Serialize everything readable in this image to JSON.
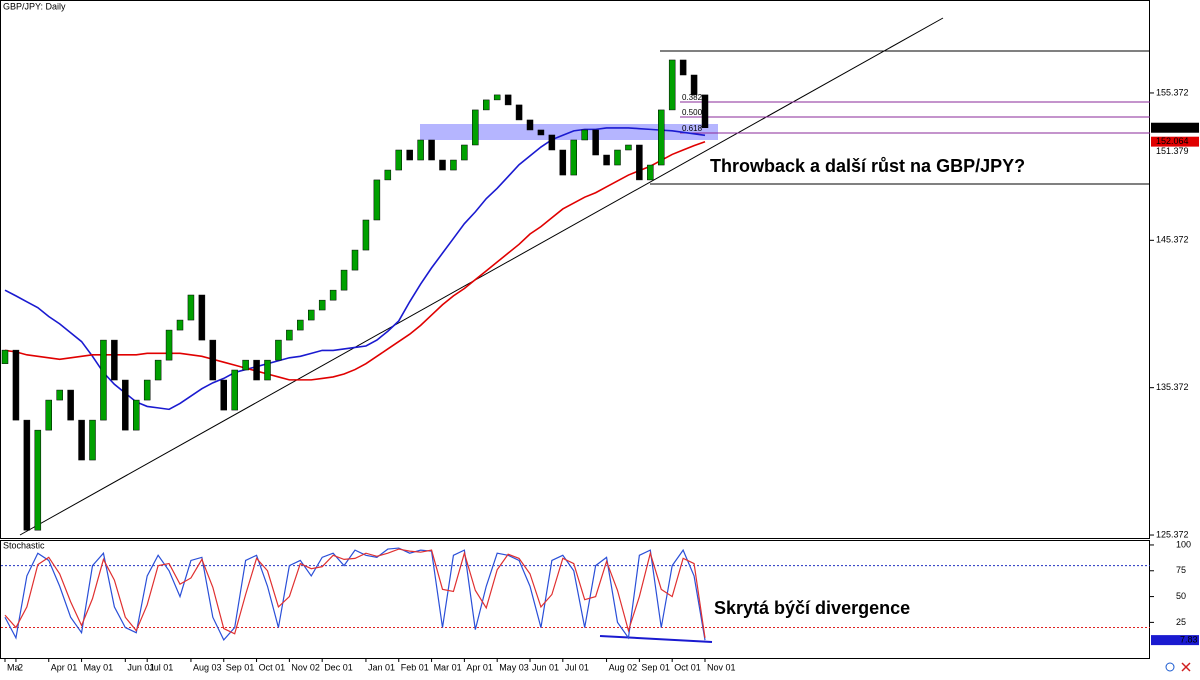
{
  "chart_data": [
    {
      "type": "candlestick",
      "title": "GBP/JPY: Daily",
      "categories": [
        "Ma",
        "2",
        null,
        null,
        "Apr 01",
        null,
        null,
        "May 01",
        null,
        null,
        null,
        "Jun 01",
        null,
        "Jul 01",
        null,
        null,
        null,
        "Aug 03",
        null,
        null,
        "Sep 01",
        null,
        null,
        "Oct 01",
        null,
        null,
        "Nov 02",
        null,
        null,
        "Dec 01",
        null,
        null,
        null,
        "Jan 01",
        null,
        null,
        "Feb 01",
        null,
        null,
        "Mar 01",
        null,
        null,
        "Apr 01",
        null,
        null,
        "May 03",
        null,
        null,
        "Jun 01",
        null,
        null,
        "Jul 01",
        null,
        null,
        null,
        "Aug 02",
        null,
        null,
        "Sep 01",
        null,
        null,
        "Oct 01",
        null,
        null,
        "Nov 01"
      ],
      "open": [
        137.0,
        137.92,
        133.17,
        125.7,
        132.49,
        134.53,
        135.21,
        133.17,
        130.46,
        133.17,
        138.6,
        135.89,
        132.49,
        134.53,
        135.89,
        137.24,
        139.28,
        139.96,
        141.66,
        138.6,
        135.89,
        133.85,
        136.57,
        137.24,
        135.89,
        137.24,
        138.6,
        139.28,
        139.96,
        140.64,
        141.31,
        141.99,
        143.35,
        144.71,
        146.75,
        149.47,
        150.14,
        151.5,
        150.82,
        152.18,
        150.82,
        150.14,
        150.82,
        151.84,
        154.22,
        154.9,
        155.24,
        154.56,
        153.54,
        152.86,
        152.52,
        151.5,
        149.8,
        152.18,
        152.86,
        151.16,
        150.48,
        151.5,
        151.84,
        149.47,
        150.48,
        154.22,
        157.61,
        156.59,
        155.24
      ],
      "close": [
        137.92,
        133.17,
        125.7,
        132.49,
        134.53,
        135.21,
        133.17,
        130.46,
        133.17,
        138.6,
        135.89,
        132.49,
        134.53,
        135.89,
        137.24,
        139.28,
        139.96,
        141.66,
        138.6,
        135.89,
        133.85,
        136.57,
        137.24,
        135.89,
        137.24,
        138.6,
        139.28,
        139.96,
        140.64,
        141.31,
        141.99,
        143.35,
        144.71,
        146.75,
        149.47,
        150.14,
        151.5,
        150.82,
        152.18,
        150.82,
        150.14,
        150.82,
        151.84,
        154.22,
        154.9,
        155.24,
        154.56,
        153.54,
        152.86,
        152.52,
        151.5,
        149.8,
        152.18,
        152.86,
        151.16,
        150.48,
        151.5,
        151.84,
        149.47,
        150.48,
        154.22,
        157.61,
        156.59,
        155.24,
        153.01
      ],
      "up_color": "#00a000",
      "down_color": "#000000",
      "series": [
        {
          "color": "#1a1ad0",
          "values": [
            141.99,
            141.6,
            141.2,
            140.8,
            140.2,
            139.7,
            139.1,
            138.5,
            137.5,
            136.4,
            135.6,
            135.0,
            134.4,
            134.1,
            134.0,
            133.9,
            134.3,
            134.8,
            135.3,
            135.7,
            136.0,
            136.4,
            136.6,
            136.8,
            137.0,
            137.2,
            137.4,
            137.5,
            137.7,
            137.9,
            137.9,
            138.0,
            138.1,
            138.2,
            138.6,
            139.2,
            139.9,
            141.2,
            142.4,
            143.5,
            144.5,
            145.5,
            146.5,
            147.3,
            148.2,
            148.9,
            149.7,
            150.5,
            151.1,
            151.7,
            152.2,
            152.5,
            152.8,
            152.9,
            152.9,
            153.0,
            153.0,
            153.0,
            152.95,
            152.9,
            152.85,
            152.8,
            152.7,
            152.6,
            152.5
          ]
        },
        {
          "color": "#e00000",
          "values": [
            137.9,
            137.8,
            137.6,
            137.5,
            137.4,
            137.3,
            137.4,
            137.5,
            137.6,
            137.6,
            137.6,
            137.6,
            137.6,
            137.7,
            137.7,
            137.7,
            137.7,
            137.6,
            137.5,
            137.3,
            137.1,
            136.9,
            136.7,
            136.5,
            136.3,
            136.1,
            135.9,
            135.9,
            135.9,
            136.0,
            136.1,
            136.3,
            136.6,
            137.0,
            137.5,
            138.0,
            138.5,
            139.0,
            139.6,
            140.3,
            141.0,
            141.6,
            142.1,
            142.7,
            143.3,
            143.9,
            144.5,
            145.1,
            145.8,
            146.3,
            146.9,
            147.5,
            147.9,
            148.3,
            148.6,
            149.0,
            149.4,
            149.8,
            150.1,
            150.4,
            150.8,
            151.2,
            151.5,
            151.8,
            152.06
          ]
        }
      ],
      "ylim": [
        125.17,
        161.68
      ],
      "yticks": [
        125.372,
        135.372,
        145.372,
        155.372
      ],
      "price_labels": [
        {
          "value": 153.012,
          "color": "#000000",
          "text_color": "#ffffff"
        },
        {
          "value": 152.064,
          "color": "#e00000",
          "text_color": "#ffffff"
        },
        {
          "value": 151.379,
          "color": "#ffffff",
          "text_color": "#000000"
        }
      ],
      "fib_labels": [
        "0.382",
        "0.500",
        "0.618"
      ],
      "annotation": "Throwback a další růst na GBP/JPY?"
    },
    {
      "type": "line",
      "title": "Stochastic",
      "series": [
        {
          "color": "#2a4fd8",
          "values": [
            30,
            10,
            70,
            92,
            85,
            60,
            30,
            15,
            80,
            92,
            40,
            20,
            15,
            70,
            90,
            75,
            50,
            85,
            88,
            30,
            8,
            20,
            85,
            90,
            60,
            20,
            80,
            85,
            70,
            88,
            92,
            80,
            95,
            90,
            88,
            96,
            97,
            92,
            95,
            94,
            20,
            90,
            95,
            18,
            60,
            92,
            90,
            85,
            60,
            20,
            85,
            90,
            75,
            20,
            80,
            88,
            25,
            10,
            90,
            95,
            20,
            80,
            95,
            70,
            7.83
          ]
        },
        {
          "color": "#e03030",
          "values": [
            32,
            20,
            40,
            81,
            88,
            72,
            45,
            22,
            48,
            86,
            66,
            30,
            17,
            42,
            80,
            82,
            62,
            68,
            86,
            59,
            19,
            14,
            52,
            87,
            75,
            40,
            50,
            82,
            77,
            79,
            90,
            86,
            87,
            92,
            89,
            92,
            96,
            94,
            93,
            95,
            57,
            55,
            92,
            56,
            39,
            76,
            91,
            87,
            72,
            40,
            52,
            87,
            82,
            47,
            50,
            84,
            56,
            17,
            50,
            92,
            57,
            50,
            87,
            82,
            10
          ]
        }
      ],
      "ylim": [
        -9.5,
        104.8
      ],
      "yticks": [
        25,
        50,
        75,
        100
      ],
      "levels": [
        {
          "value": 80,
          "color": "#2030c0"
        },
        {
          "value": 20,
          "color": "#e02020"
        }
      ],
      "last_value": 7.83,
      "last_color": "#1a1ad0",
      "annotation": "Skrytá býčí divergence"
    }
  ]
}
